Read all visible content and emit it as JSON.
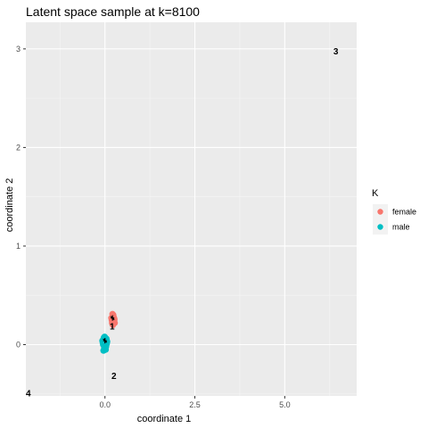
{
  "chart_data": {
    "type": "scatter",
    "title": "Latent space sample at k=8100",
    "xlabel": "coordinate 1",
    "ylabel": "coordinate 2",
    "xlim": [
      -2.2,
      7.0
    ],
    "ylim": [
      -0.52,
      3.27
    ],
    "x_ticks": [
      0.0,
      2.5,
      5.0
    ],
    "x_tick_labels": [
      "0.0",
      "2.5",
      "5.0"
    ],
    "y_ticks": [
      0,
      1,
      2,
      3
    ],
    "y_tick_labels": [
      "0",
      "1",
      "2",
      "3"
    ],
    "grid": true,
    "legend": {
      "title": "K",
      "position": "right"
    },
    "series": [
      {
        "name": "female",
        "color": "#F8766D",
        "x": [
          0.21,
          0.24,
          0.26,
          0.18,
          0.22,
          0.25,
          0.2,
          0.23,
          0.27,
          0.19,
          0.24,
          0.22,
          0.26,
          0.21,
          0.23,
          0.25,
          0.2,
          0.22
        ],
        "y": [
          0.21,
          0.23,
          0.25,
          0.27,
          0.29,
          0.24,
          0.26,
          0.3,
          0.22,
          0.25,
          0.28,
          0.2,
          0.26,
          0.31,
          0.24,
          0.27,
          0.22,
          0.29
        ]
      },
      {
        "name": "male",
        "color": "#00BFC4",
        "x": [
          -0.05,
          0.0,
          0.03,
          -0.02,
          0.05,
          -0.07,
          0.02,
          -0.03,
          0.06,
          0.0,
          -0.04,
          0.04,
          -0.01,
          0.03,
          -0.06,
          0.01,
          0.05,
          -0.02,
          0.0,
          0.02,
          -0.04,
          0.03
        ],
        "y": [
          0.0,
          0.02,
          0.05,
          -0.03,
          0.01,
          0.04,
          -0.05,
          0.07,
          0.03,
          -0.02,
          -0.06,
          0.06,
          0.08,
          0.0,
          0.02,
          -0.04,
          0.04,
          0.05,
          0.01,
          -0.01,
          0.03,
          -0.02
        ]
      }
    ],
    "annotations": [
      {
        "text": "1",
        "x": 0.2,
        "y": 0.19
      },
      {
        "text": "2",
        "x": 0.25,
        "y": -0.31
      },
      {
        "text": "3",
        "x": 6.42,
        "y": 2.98
      },
      {
        "text": "4",
        "x": -2.13,
        "y": -0.49
      }
    ],
    "centers": [
      {
        "x": 0.21,
        "y": 0.27
      },
      {
        "x": 0.0,
        "y": 0.04
      }
    ]
  }
}
